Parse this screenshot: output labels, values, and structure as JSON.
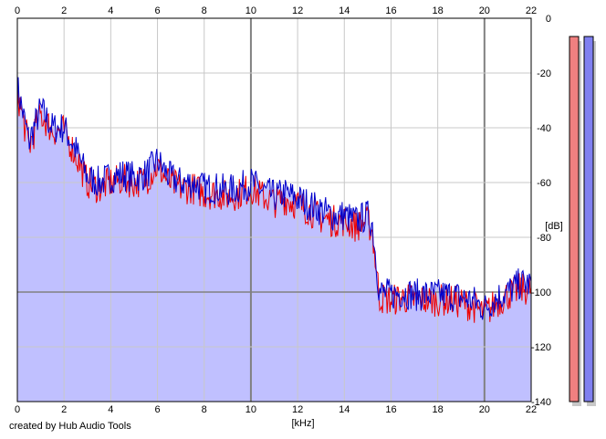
{
  "footer": {
    "credit": "created by Hub Audio Tools"
  },
  "colors": {
    "fill": "#c0c0ff",
    "right_line": "#0000cc",
    "left_line": "#ee0000",
    "grid": "#c8c8c8",
    "major_grid": "#808080",
    "left_meter": "#f08080",
    "right_meter": "#8080f0",
    "meter_shadow": "#c8c8c8"
  },
  "chart_data": {
    "type": "area",
    "xlabel": "[kHz]",
    "ylabel": "[dB]",
    "xlim": [
      0,
      22
    ],
    "ylim": [
      -140,
      0
    ],
    "x_ticks": [
      "0",
      "2",
      "4",
      "6",
      "8",
      "10",
      "12",
      "14",
      "16",
      "18",
      "20",
      "22"
    ],
    "y_ticks": [
      "0",
      "-20",
      "-40",
      "-60",
      "-80",
      "-100",
      "-120",
      "-140"
    ],
    "grid": true,
    "x": [
      0,
      0.5,
      1,
      1.5,
      2,
      2.5,
      3,
      3.5,
      4,
      4.5,
      5,
      5.5,
      6,
      6.5,
      7,
      7.5,
      8,
      8.5,
      9,
      9.5,
      10,
      10.5,
      11,
      11.5,
      12,
      12.5,
      13,
      13.5,
      14,
      14.5,
      15,
      15.2,
      15.5,
      16,
      16.5,
      17,
      17.5,
      18,
      18.5,
      19,
      19.5,
      20,
      20.5,
      21,
      21.5,
      22
    ],
    "series": [
      {
        "values": [
          -25,
          -45,
          -33,
          -40,
          -40,
          -48,
          -58,
          -60,
          -58,
          -57,
          -58,
          -57,
          -52,
          -58,
          -60,
          -60,
          -62,
          -62,
          -63,
          -62,
          -60,
          -63,
          -65,
          -64,
          -66,
          -68,
          -70,
          -72,
          -72,
          -74,
          -72,
          -75,
          -100,
          -101,
          -100,
          -101,
          -101,
          -101,
          -101,
          -102,
          -103,
          -106,
          -102,
          -100,
          -97,
          -97
        ]
      },
      {
        "values": [
          -27,
          -47,
          -35,
          -41,
          -41,
          -50,
          -60,
          -62,
          -60,
          -59,
          -60,
          -59,
          -54,
          -60,
          -62,
          -62,
          -64,
          -64,
          -65,
          -64,
          -62,
          -65,
          -67,
          -66,
          -68,
          -70,
          -73,
          -74,
          -74,
          -76,
          -74,
          -78,
          -102,
          -103,
          -102,
          -103,
          -103,
          -103,
          -103,
          -104,
          -105,
          -108,
          -104,
          -101,
          -99,
          -99
        ]
      }
    ],
    "meters": {
      "left_db": -140,
      "right_db": -140
    }
  }
}
